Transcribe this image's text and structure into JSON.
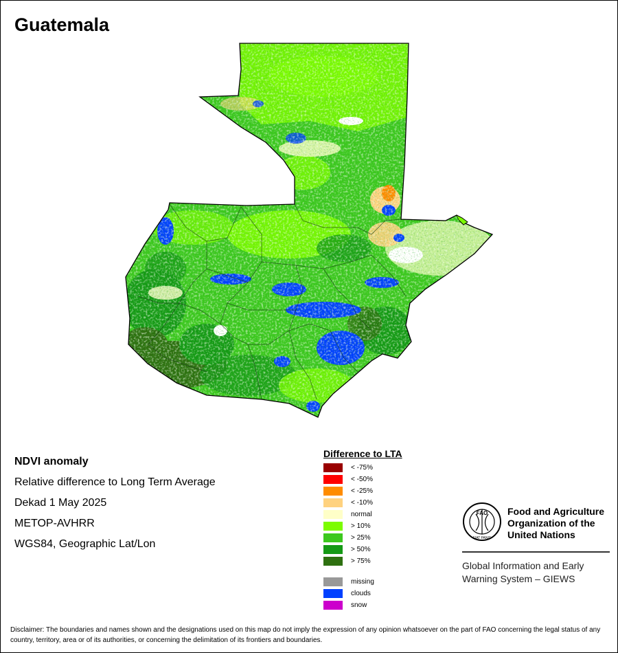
{
  "title": "Guatemala",
  "info": {
    "heading": "NDVI anomaly",
    "line1": "Relative difference to Long Term Average",
    "line2": "Dekad 1 May 2025",
    "line3": "METOP-AVHRR",
    "line4": "WGS84, Geographic Lat/Lon"
  },
  "legend": {
    "title": "Difference to LTA",
    "classes": [
      {
        "label": "< -75%",
        "color": "#990000"
      },
      {
        "label": "< -50%",
        "color": "#ff0000"
      },
      {
        "label": "< -25%",
        "color": "#ff8c00"
      },
      {
        "label": "< -10%",
        "color": "#ffd27f"
      },
      {
        "label": "normal",
        "color": "#ffffc8"
      },
      {
        "label": "> 10%",
        "color": "#7cfc00"
      },
      {
        "label": "> 25%",
        "color": "#3cc81e"
      },
      {
        "label": "> 50%",
        "color": "#159a15"
      },
      {
        "label": "> 75%",
        "color": "#2e7010"
      }
    ],
    "extra": [
      {
        "label": "missing",
        "color": "#999999"
      },
      {
        "label": "clouds",
        "color": "#0040ff"
      },
      {
        "label": "snow",
        "color": "#cc00cc"
      }
    ]
  },
  "fao": {
    "name_line1": "Food and Agriculture",
    "name_line2": "Organization of the",
    "name_line3": "United Nations",
    "logo_text": "FAO",
    "motto": "FIAT PANIS",
    "giews_line1": "Global Information and Early",
    "giews_line2": "Warning System – GIEWS"
  },
  "disclaimer": "Disclaimer: The boundaries and names shown and the designations used on this map do not imply the expression of any opinion whatsoever on the part of FAO concerning the legal status of any country, territory, area or of its authorities, or concerning the delimitation of its frontiers and boundaries."
}
